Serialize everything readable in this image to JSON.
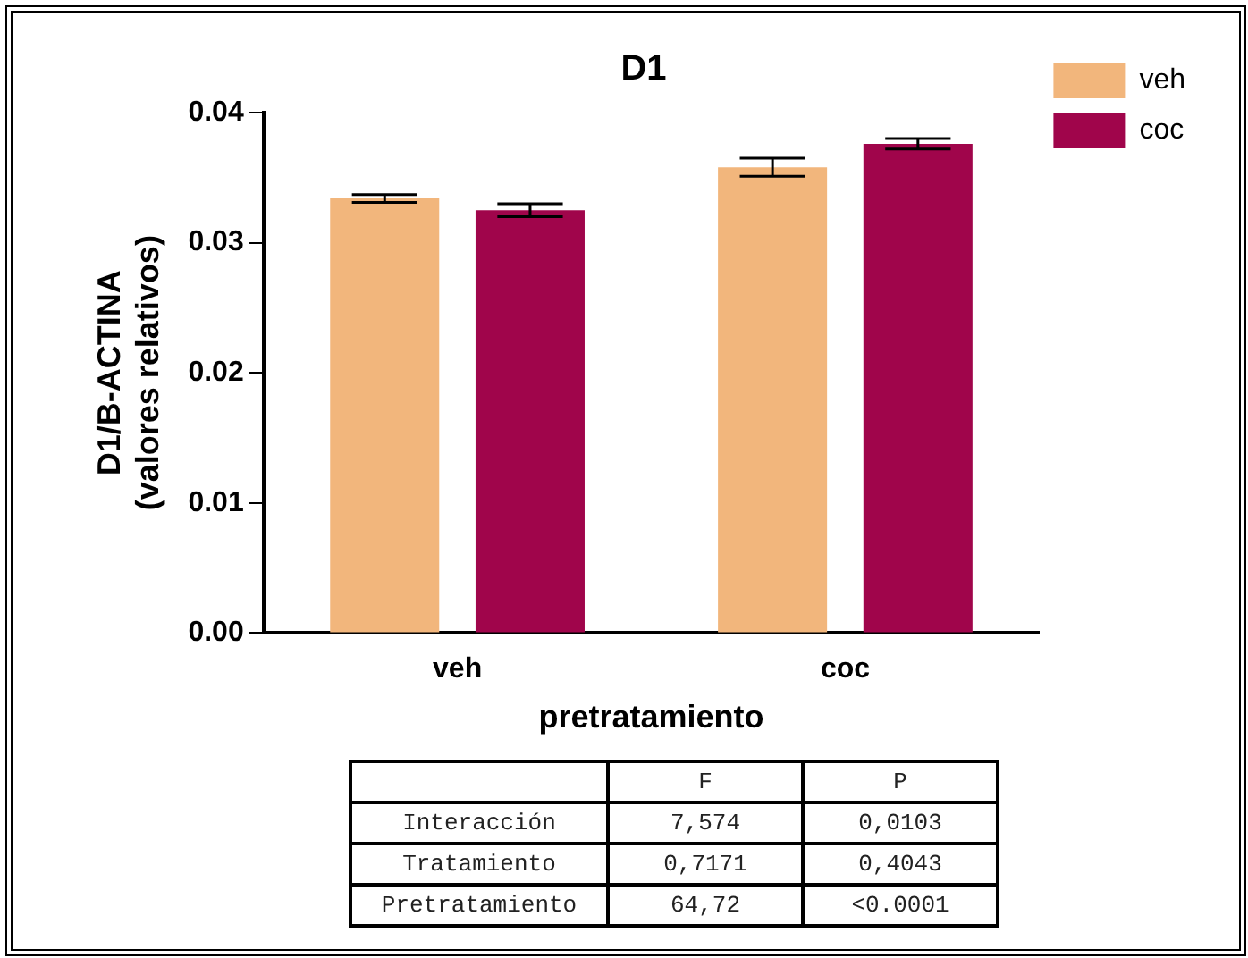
{
  "chart_data": {
    "type": "bar",
    "title": "D1",
    "xlabel": "pretratamiento",
    "ylabel": "D1/B-ACTINA\n(valores relativos)",
    "categories": [
      "veh",
      "coc"
    ],
    "series": [
      {
        "name": "veh",
        "color": "#f2b67c",
        "values": [
          0.0334,
          0.0358
        ],
        "errors": [
          0.0003,
          0.0007
        ]
      },
      {
        "name": "coc",
        "color": "#a0054b",
        "values": [
          0.0325,
          0.0376
        ],
        "errors": [
          0.0005,
          0.0004
        ]
      }
    ],
    "ylim": [
      0,
      0.04
    ],
    "yticks": [
      {
        "value": 0,
        "label": "0.00"
      },
      {
        "value": 0.01,
        "label": "0.01"
      },
      {
        "value": 0.02,
        "label": "0.02"
      },
      {
        "value": 0.03,
        "label": "0.03"
      },
      {
        "value": 0.04,
        "label": "0.04"
      }
    ],
    "grid": false,
    "legend": "top right",
    "annotations": [
      "F",
      "P",
      "Interacción",
      "7,574",
      "0,0103",
      "Tratamiento",
      "0,7171",
      "0,4043",
      "Pretratamiento",
      "64,72",
      "<0.0001"
    ]
  }
}
